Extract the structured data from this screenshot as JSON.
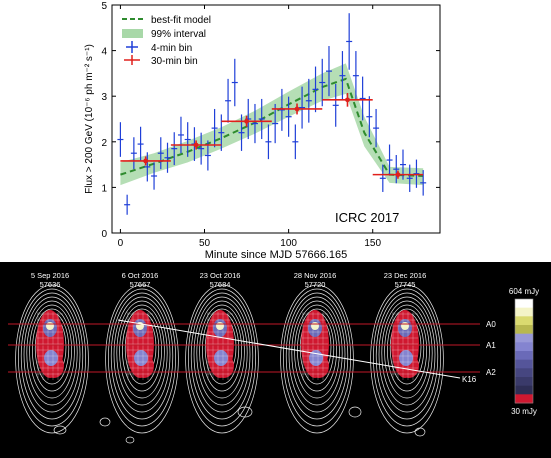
{
  "chart_data": [
    {
      "type": "scatter",
      "xlabel": "Minute since MJD 57666.165",
      "ylabel": "Flux > 200 GeV (10⁻⁶ ph m⁻² s⁻¹)",
      "xlim": [
        -5,
        190
      ],
      "ylim": [
        0,
        5
      ],
      "xticks": [
        0,
        50,
        100,
        150
      ],
      "yticks": [
        0,
        1,
        2,
        3,
        4,
        5
      ],
      "annotation": "ICRC 2017",
      "legend_position": "top-left",
      "legend": [
        {
          "label": "best-fit model",
          "style": "dashed-line",
          "color": "#2e8b2e"
        },
        {
          "label": "99% interval",
          "style": "band",
          "color": "#a8d8a8"
        },
        {
          "label": "4-min bin",
          "style": "errorbar",
          "color": "#1f3fd8"
        },
        {
          "label": "30-min bin",
          "style": "errorbar",
          "color": "#e0201c"
        }
      ],
      "series_4min": {
        "name": "4-min bin",
        "color": "#1f3fd8",
        "x": [
          0,
          4,
          8,
          12,
          16,
          20,
          24,
          28,
          32,
          36,
          40,
          44,
          48,
          52,
          56,
          60,
          64,
          68,
          72,
          76,
          80,
          84,
          88,
          92,
          96,
          100,
          104,
          108,
          112,
          116,
          120,
          124,
          128,
          132,
          136,
          140,
          144,
          148,
          152,
          156,
          160,
          164,
          168,
          172,
          176,
          180
        ],
        "y": [
          2.05,
          0.62,
          1.75,
          1.95,
          1.45,
          1.25,
          1.75,
          1.65,
          1.85,
          2.15,
          2.05,
          1.95,
          1.85,
          1.7,
          2.3,
          2.2,
          2.9,
          3.3,
          2.2,
          2.5,
          2.4,
          2.5,
          2.0,
          2.4,
          2.7,
          2.55,
          2.0,
          2.75,
          2.9,
          3.15,
          3.3,
          3.55,
          2.8,
          3.45,
          4.2,
          3.45,
          2.95,
          2.55,
          2.3,
          1.2,
          1.6,
          1.4,
          1.5,
          1.2,
          1.3,
          1.1
        ],
        "yerr": [
          0.38,
          0.22,
          0.35,
          0.38,
          0.32,
          0.3,
          0.35,
          0.33,
          0.36,
          0.4,
          0.38,
          0.37,
          0.35,
          0.33,
          0.42,
          0.4,
          0.48,
          0.52,
          0.4,
          0.44,
          0.43,
          0.44,
          0.38,
          0.43,
          0.46,
          0.44,
          0.38,
          0.46,
          0.48,
          0.5,
          0.52,
          0.55,
          0.47,
          0.54,
          0.62,
          0.54,
          0.48,
          0.45,
          0.42,
          0.3,
          0.34,
          0.31,
          0.33,
          0.3,
          0.31,
          0.28
        ]
      },
      "series_30min": {
        "name": "30-min bin",
        "color": "#e0201c",
        "x": [
          15,
          45,
          75,
          105,
          135,
          165
        ],
        "xerr": [
          15,
          15,
          15,
          15,
          15,
          15
        ],
        "y": [
          1.58,
          1.93,
          2.45,
          2.72,
          2.92,
          1.28
        ],
        "yerr": [
          0.1,
          0.1,
          0.12,
          0.12,
          0.15,
          0.09
        ]
      },
      "model": {
        "name": "best-fit model",
        "x": [
          0,
          20,
          40,
          60,
          80,
          100,
          120,
          134,
          145,
          160,
          180
        ],
        "y": [
          1.28,
          1.52,
          1.78,
          2.08,
          2.42,
          2.82,
          3.2,
          3.38,
          2.2,
          1.28,
          1.25
        ]
      },
      "interval_99": {
        "name": "99% interval",
        "x": [
          0,
          20,
          40,
          60,
          80,
          100,
          120,
          134,
          145,
          160,
          180
        ],
        "lower": [
          1.05,
          1.32,
          1.55,
          1.85,
          2.18,
          2.55,
          2.9,
          3.05,
          1.9,
          1.1,
          1.05
        ],
        "upper": [
          1.55,
          1.75,
          2.02,
          2.32,
          2.68,
          3.1,
          3.5,
          3.72,
          2.55,
          1.45,
          1.42
        ]
      }
    }
  ],
  "radio_maps": {
    "epochs": [
      {
        "date": "5 Sep 2016",
        "mjd": "57636"
      },
      {
        "date": "6 Oct 2016",
        "mjd": "57667"
      },
      {
        "date": "23 Oct 2016",
        "mjd": "57684"
      },
      {
        "date": "28 Nov 2016",
        "mjd": "57720"
      },
      {
        "date": "23 Dec 2016",
        "mjd": "57745"
      }
    ],
    "component_labels": [
      "A0",
      "A1",
      "A2",
      "K16"
    ],
    "colorbar": {
      "max_label": "604 mJy",
      "min_label": "30 mJy",
      "colors": [
        "#ffffff",
        "#f4f4c8",
        "#dada70",
        "#b8b850",
        "#9898d8",
        "#8484d0",
        "#6a6ab8",
        "#55559a",
        "#464680",
        "#3a3a6a",
        "#2e2e55",
        "#d01830"
      ]
    }
  }
}
